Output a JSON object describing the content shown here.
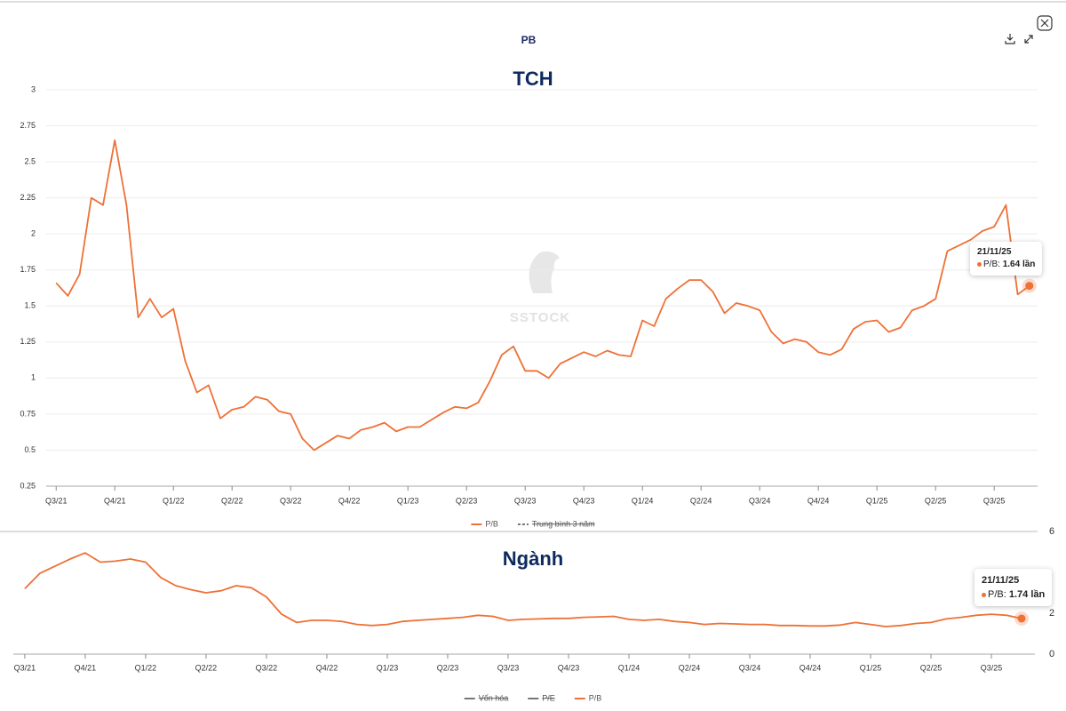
{
  "header": {
    "title": "PB"
  },
  "watermark": "SSTOCK",
  "chart_data": [
    {
      "type": "line",
      "title": "TCH",
      "x": [
        0,
        0.2,
        0.4,
        0.6,
        0.8,
        1,
        1.2,
        1.4,
        1.6,
        1.8,
        2,
        2.2,
        2.4,
        2.6,
        2.8,
        3,
        3.2,
        3.4,
        3.6,
        3.8,
        4,
        4.2,
        4.4,
        4.6,
        4.8,
        5,
        5.2,
        5.4,
        5.6,
        5.8,
        6,
        6.2,
        6.4,
        6.6,
        6.8,
        7,
        7.2,
        7.4,
        7.6,
        7.8,
        8,
        8.2,
        8.4,
        8.6,
        8.8,
        9,
        9.2,
        9.4,
        9.6,
        9.8,
        10,
        10.2,
        10.4,
        10.6,
        10.8,
        11,
        11.2,
        11.4,
        11.6,
        11.8,
        12,
        12.2,
        12.4,
        12.6,
        12.8,
        13,
        13.2,
        13.4,
        13.6,
        13.8,
        14,
        14.2,
        14.4,
        14.6,
        14.8,
        15,
        15.2,
        15.4,
        15.6,
        15.8,
        16,
        16.2,
        16.4,
        16.6
      ],
      "series": [
        {
          "name": "P/B",
          "color": "#ee7137",
          "values": [
            1.66,
            1.57,
            1.72,
            2.25,
            2.2,
            2.65,
            2.2,
            1.42,
            1.55,
            1.42,
            1.48,
            1.12,
            0.9,
            0.95,
            0.72,
            0.78,
            0.8,
            0.87,
            0.85,
            0.77,
            0.75,
            0.58,
            0.5,
            0.55,
            0.6,
            0.58,
            0.64,
            0.66,
            0.69,
            0.63,
            0.66,
            0.66,
            0.71,
            0.76,
            0.8,
            0.79,
            0.83,
            0.98,
            1.16,
            1.22,
            1.05,
            1.05,
            1,
            1.1,
            1.14,
            1.18,
            1.15,
            1.19,
            1.16,
            1.15,
            1.4,
            1.36,
            1.55,
            1.62,
            1.68,
            1.68,
            1.6,
            1.45,
            1.52,
            1.5,
            1.47,
            1.32,
            1.24,
            1.27,
            1.25,
            1.18,
            1.16,
            1.2,
            1.34,
            1.39,
            1.4,
            1.32,
            1.35,
            1.47,
            1.5,
            1.55,
            1.88,
            1.92,
            1.96,
            2.02,
            2.05,
            2.2,
            1.58,
            1.64
          ]
        },
        {
          "name": "Trung bình 3 năm",
          "hidden": true
        }
      ],
      "xlim": [
        -0.17,
        16.74
      ],
      "xticks": [
        {
          "value": 0,
          "label": "Q3/21"
        },
        {
          "value": 1,
          "label": "Q4/21"
        },
        {
          "value": 2,
          "label": "Q1/22"
        },
        {
          "value": 3,
          "label": "Q2/22"
        },
        {
          "value": 4,
          "label": "Q3/22"
        },
        {
          "value": 5,
          "label": "Q4/22"
        },
        {
          "value": 6,
          "label": "Q1/23"
        },
        {
          "value": 7,
          "label": "Q2/23"
        },
        {
          "value": 8,
          "label": "Q3/23"
        },
        {
          "value": 9,
          "label": "Q4/23"
        },
        {
          "value": 10,
          "label": "Q1/24"
        },
        {
          "value": 11,
          "label": "Q2/24"
        },
        {
          "value": 12,
          "label": "Q3/24"
        },
        {
          "value": 13,
          "label": "Q4/24"
        },
        {
          "value": 14,
          "label": "Q1/25"
        },
        {
          "value": 15,
          "label": "Q2/25"
        },
        {
          "value": 16,
          "label": "Q3/25"
        }
      ],
      "ylim": [
        0.25,
        3
      ],
      "yticks": [
        0.25,
        0.5,
        0.75,
        1,
        1.25,
        1.5,
        1.75,
        2,
        2.25,
        2.5,
        2.75,
        3
      ],
      "grid": true,
      "y_axis_side": "left",
      "tooltip": {
        "date": "21/11/25",
        "label": "P/B:",
        "value": 1.64,
        "unit": "lần"
      }
    },
    {
      "type": "line",
      "title": "Ngành",
      "x": [
        0,
        0.25,
        0.5,
        0.75,
        1,
        1.25,
        1.5,
        1.75,
        2,
        2.25,
        2.5,
        2.75,
        3,
        3.25,
        3.5,
        3.75,
        4,
        4.25,
        4.5,
        4.75,
        5,
        5.25,
        5.5,
        5.75,
        6,
        6.25,
        6.5,
        6.75,
        7,
        7.25,
        7.5,
        7.75,
        8,
        8.25,
        8.5,
        8.75,
        9,
        9.25,
        9.5,
        9.75,
        10,
        10.25,
        10.5,
        10.75,
        11,
        11.25,
        11.5,
        11.75,
        12,
        12.25,
        12.5,
        12.75,
        13,
        13.25,
        13.5,
        13.75,
        14,
        14.25,
        14.5,
        14.75,
        15,
        15.25,
        15.5,
        15.75,
        16,
        16.25,
        16.5
      ],
      "series": [
        {
          "name": "Vốn hóa",
          "hidden": true
        },
        {
          "name": "P/E",
          "hidden": true
        },
        {
          "name": "P/B",
          "color": "#ee7137",
          "values": [
            3.2,
            3.95,
            4.3,
            4.65,
            4.95,
            4.5,
            4.55,
            4.65,
            4.5,
            3.75,
            3.35,
            3.15,
            3,
            3.1,
            3.35,
            3.25,
            2.8,
            1.95,
            1.55,
            1.65,
            1.65,
            1.6,
            1.45,
            1.4,
            1.45,
            1.6,
            1.65,
            1.7,
            1.75,
            1.8,
            1.9,
            1.85,
            1.65,
            1.7,
            1.72,
            1.75,
            1.75,
            1.8,
            1.82,
            1.85,
            1.7,
            1.65,
            1.7,
            1.6,
            1.55,
            1.45,
            1.5,
            1.48,
            1.45,
            1.45,
            1.4,
            1.4,
            1.38,
            1.38,
            1.42,
            1.55,
            1.45,
            1.35,
            1.4,
            1.5,
            1.55,
            1.72,
            1.8,
            1.9,
            1.95,
            1.9,
            1.74
          ]
        }
      ],
      "xlim": [
        -0.19,
        16.72
      ],
      "xticks": [
        {
          "value": 0,
          "label": "Q3/21"
        },
        {
          "value": 1,
          "label": "Q4/21"
        },
        {
          "value": 2,
          "label": "Q1/22"
        },
        {
          "value": 3,
          "label": "Q2/22"
        },
        {
          "value": 4,
          "label": "Q3/22"
        },
        {
          "value": 5,
          "label": "Q4/22"
        },
        {
          "value": 6,
          "label": "Q1/23"
        },
        {
          "value": 7,
          "label": "Q2/23"
        },
        {
          "value": 8,
          "label": "Q3/23"
        },
        {
          "value": 9,
          "label": "Q4/23"
        },
        {
          "value": 10,
          "label": "Q1/24"
        },
        {
          "value": 11,
          "label": "Q2/24"
        },
        {
          "value": 12,
          "label": "Q3/24"
        },
        {
          "value": 13,
          "label": "Q4/24"
        },
        {
          "value": 14,
          "label": "Q1/25"
        },
        {
          "value": 15,
          "label": "Q2/25"
        },
        {
          "value": 16,
          "label": "Q3/25"
        }
      ],
      "ylim": [
        0,
        6
      ],
      "yticks": [
        0,
        2,
        6
      ],
      "grid": false,
      "y_axis_side": "right",
      "tooltip": {
        "date": "21/11/25",
        "label": "P/B:",
        "value": 1.74,
        "unit": "lần"
      }
    }
  ]
}
